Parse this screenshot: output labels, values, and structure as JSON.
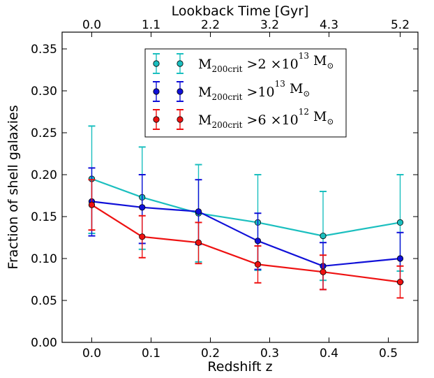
{
  "chart_data": {
    "type": "line",
    "xlabel": "Redshift z",
    "ylabel": "Fraction of shell galaxies",
    "top_xlabel": "Lookback Time [Gyr]",
    "xlim": [
      -0.05,
      0.55
    ],
    "ylim": [
      0.0,
      0.37
    ],
    "x_ticks": [
      "0.0",
      "0.1",
      "0.2",
      "0.3",
      "0.4",
      "0.5"
    ],
    "x_tick_values": [
      0.0,
      0.1,
      0.2,
      0.3,
      0.4,
      0.5
    ],
    "y_ticks": [
      "0.00",
      "0.05",
      "0.10",
      "0.15",
      "0.20",
      "0.25",
      "0.30",
      "0.35"
    ],
    "y_tick_values": [
      0.0,
      0.05,
      0.1,
      0.15,
      0.2,
      0.25,
      0.3,
      0.35
    ],
    "top_ticks": [
      "0.0",
      "1.1",
      "2.2",
      "3.2",
      "4.3",
      "5.2"
    ],
    "top_tick_values": [
      0.0,
      0.1,
      0.2,
      0.3,
      0.4,
      0.52
    ],
    "grid": false,
    "legend_position": "top-center",
    "x": [
      0.0,
      0.085,
      0.18,
      0.28,
      0.39,
      0.52
    ],
    "series": [
      {
        "name_main": "M",
        "name_sub": "200crit",
        "name_mid": " >2 ×10",
        "name_sup": "13",
        "name_unit": " M",
        "name_unit_sub": "⊙",
        "color": "#1bbfbf",
        "values": [
          0.195,
          0.173,
          0.154,
          0.143,
          0.127,
          0.143
        ],
        "err_low": [
          0.13,
          0.111,
          0.096,
          0.086,
          0.074,
          0.085
        ],
        "err_high": [
          0.258,
          0.233,
          0.212,
          0.2,
          0.18,
          0.2
        ]
      },
      {
        "name_main": "M",
        "name_sub": "200crit",
        "name_mid": " >10",
        "name_sup": "13",
        "name_unit": " M",
        "name_unit_sub": "⊙",
        "color": "#1010d8",
        "values": [
          0.168,
          0.161,
          0.156,
          0.121,
          0.091,
          0.1
        ],
        "err_low": [
          0.127,
          0.118,
          0.117,
          0.087,
          0.063,
          0.072
        ],
        "err_high": [
          0.208,
          0.2,
          0.194,
          0.154,
          0.119,
          0.131
        ]
      },
      {
        "name_main": "M",
        "name_sub": "200crit",
        "name_mid": " >6 ×10",
        "name_sup": "12",
        "name_unit": " M",
        "name_unit_sub": "⊙",
        "color": "#ee1111",
        "values": [
          0.164,
          0.126,
          0.119,
          0.093,
          0.084,
          0.072
        ],
        "err_low": [
          0.134,
          0.101,
          0.094,
          0.071,
          0.063,
          0.053
        ],
        "err_high": [
          0.194,
          0.151,
          0.143,
          0.115,
          0.104,
          0.091
        ]
      }
    ]
  }
}
